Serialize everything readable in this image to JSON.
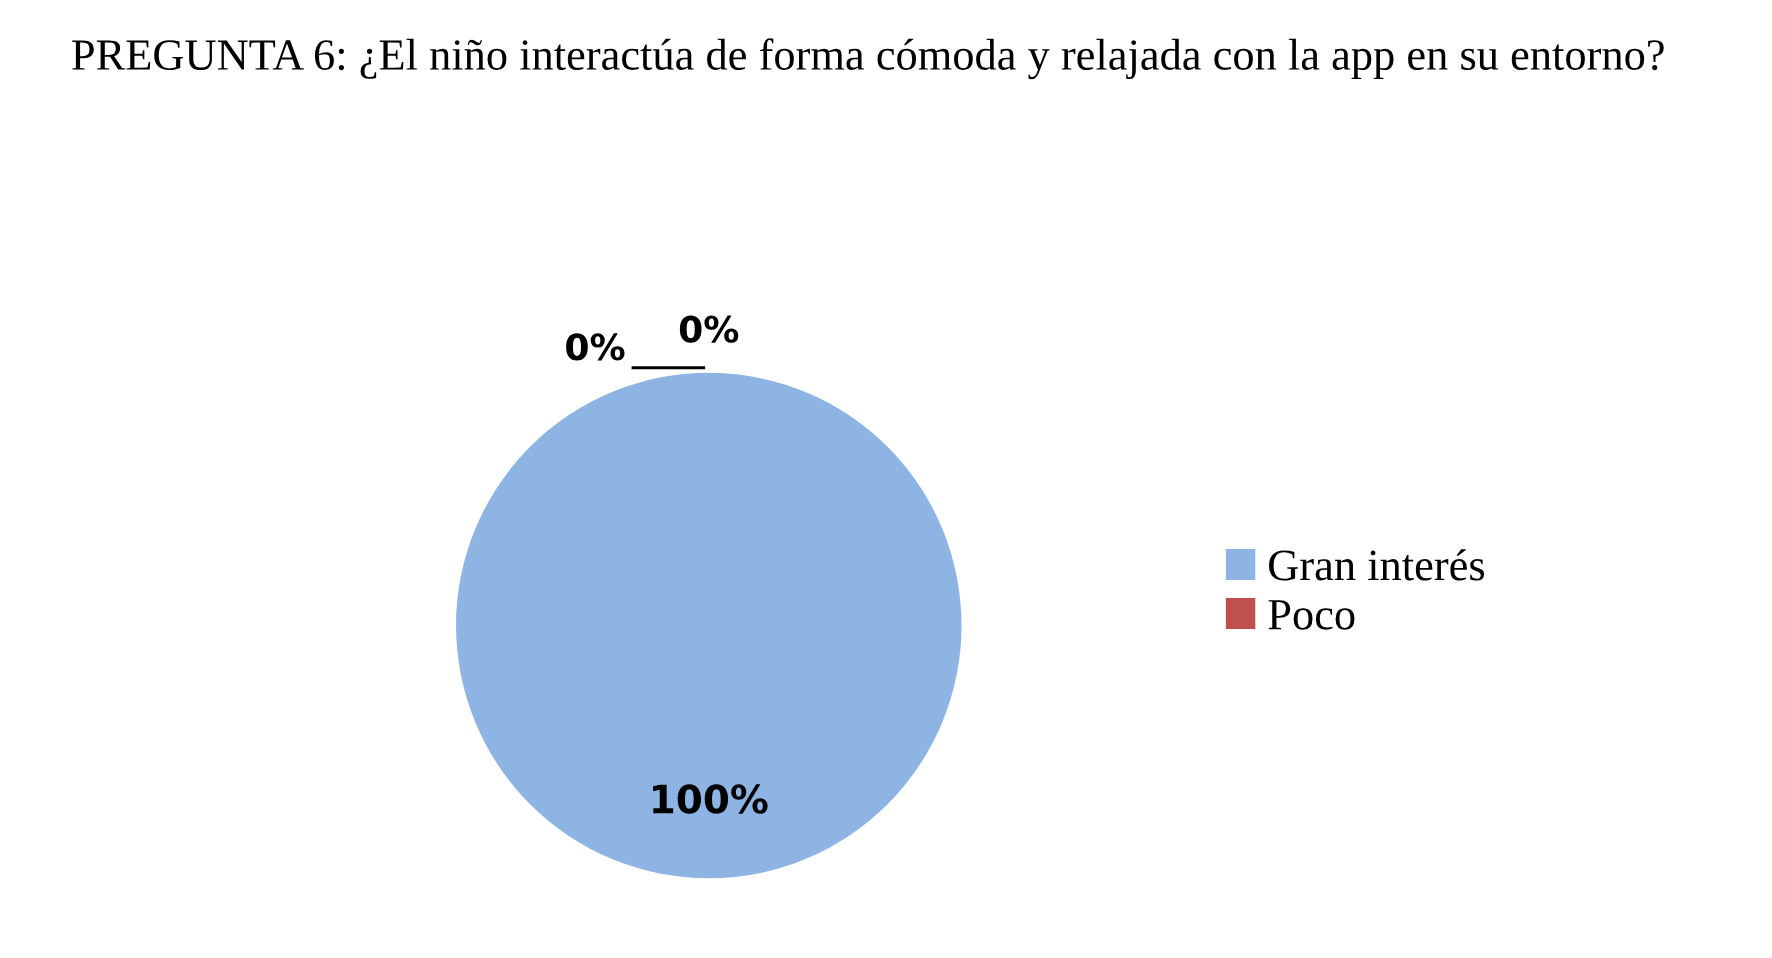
{
  "chart_data": {
    "type": "pie",
    "title": "PREGUNTA 6: ¿El niño interactúa de forma cómoda y relajada con la app en su entorno?",
    "categories": [
      "Gran interés",
      "Poco",
      null
    ],
    "values": [
      100,
      0,
      0
    ],
    "colors": [
      "#8eb4e3",
      "#c0504d",
      "#9bbb59"
    ],
    "value_labels": [
      "100%",
      "0%",
      "0%"
    ],
    "legend": "right"
  }
}
